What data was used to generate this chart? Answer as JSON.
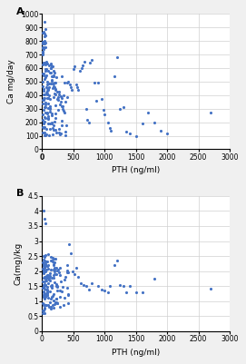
{
  "plot_A": {
    "label": "A",
    "xlabel": "PTH (ng/ml)",
    "ylabel": "Ca mg/day",
    "xlim": [
      0,
      3000
    ],
    "ylim": [
      0,
      1000
    ],
    "xticks": [
      0,
      500,
      1000,
      1500,
      2000,
      2500,
      3000
    ],
    "yticks": [
      0,
      100,
      200,
      300,
      400,
      500,
      600,
      700,
      800,
      900,
      1000
    ],
    "dot_color": "#4472C4",
    "dot_size": 5
  },
  "plot_B": {
    "label": "B",
    "xlabel": "PTH (ng/ml)",
    "ylabel": "Ca(mg)/kg",
    "xlim": [
      0,
      3000
    ],
    "ylim": [
      0,
      4.5
    ],
    "xticks": [
      0,
      500,
      1000,
      1500,
      2000,
      2500,
      3000
    ],
    "yticks": [
      0,
      0.5,
      1.0,
      1.5,
      2.0,
      2.5,
      3.0,
      3.5,
      4.0,
      4.5
    ],
    "dot_color": "#4472C4",
    "dot_size": 5
  },
  "bg_color": "#f0f0f0",
  "panel_bg": "#ffffff",
  "grid_color": "#d0d0d0",
  "label_fontsize": 6.5,
  "tick_fontsize": 5.5,
  "panel_label_fontsize": 8
}
